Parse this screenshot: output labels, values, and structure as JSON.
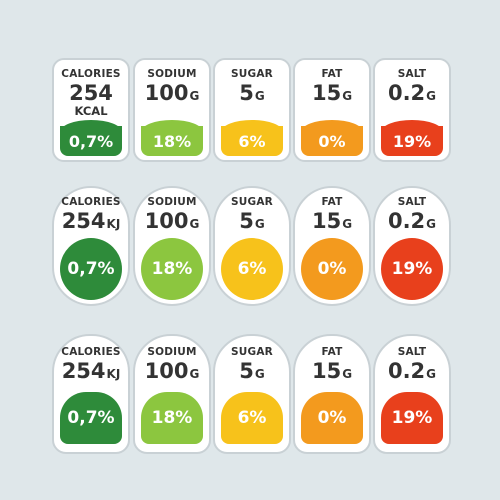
{
  "colors": {
    "calories": "#2e8b3a",
    "sodium": "#8cc63f",
    "sugar": "#f7c21b",
    "fat": "#f39a1e",
    "salt": "#e8401c"
  },
  "rows": [
    {
      "cards": [
        {
          "label": "CALORIES",
          "value": "254",
          "unit": "KCAL",
          "percent": "0,7%"
        },
        {
          "label": "SODIUM",
          "value": "100",
          "unit": "G",
          "percent": "18%"
        },
        {
          "label": "SUGAR",
          "value": "5",
          "unit": "G",
          "percent": "6%"
        },
        {
          "label": "FAT",
          "value": "15",
          "unit": "G",
          "percent": "0%"
        },
        {
          "label": "SALT",
          "value": "0.2",
          "unit": "G",
          "percent": "19%"
        }
      ]
    },
    {
      "cards": [
        {
          "label": "CALORIES",
          "value": "254",
          "unit": "KJ",
          "percent": "0,7%"
        },
        {
          "label": "SODIUM",
          "value": "100",
          "unit": "G",
          "percent": "18%"
        },
        {
          "label": "SUGAR",
          "value": "5",
          "unit": "G",
          "percent": "6%"
        },
        {
          "label": "FAT",
          "value": "15",
          "unit": "G",
          "percent": "0%"
        },
        {
          "label": "SALT",
          "value": "0.2",
          "unit": "G",
          "percent": "19%"
        }
      ]
    },
    {
      "cards": [
        {
          "label": "CALORIES",
          "value": "254",
          "unit": "KJ",
          "percent": "0,7%"
        },
        {
          "label": "SODIUM",
          "value": "100",
          "unit": "G",
          "percent": "18%"
        },
        {
          "label": "SUGAR",
          "value": "5",
          "unit": "G",
          "percent": "6%"
        },
        {
          "label": "FAT",
          "value": "15",
          "unit": "G",
          "percent": "0%"
        },
        {
          "label": "SALT",
          "value": "0.2",
          "unit": "G",
          "percent": "19%"
        }
      ]
    }
  ]
}
